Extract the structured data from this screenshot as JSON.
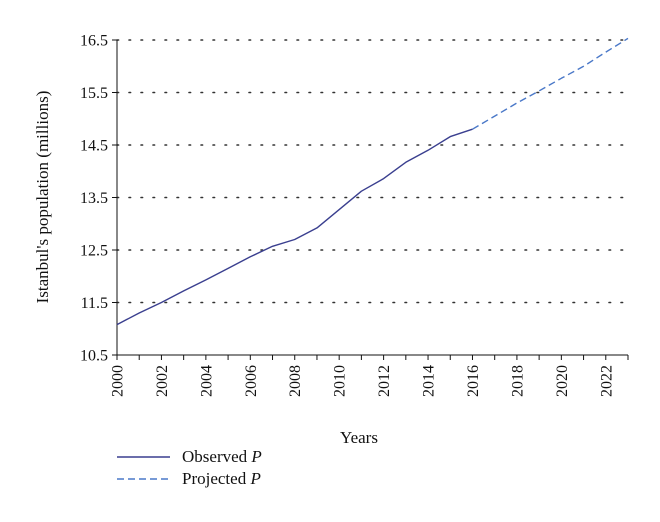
{
  "chart_data": {
    "type": "line",
    "xlabel": "Years",
    "ylabel": "Istanbul's population (millions)",
    "xlim": [
      2000,
      2023
    ],
    "ylim": [
      10.5,
      16.5
    ],
    "x_ticks": [
      "2000",
      "2002",
      "2004",
      "2006",
      "2008",
      "2010",
      "2012",
      "2014",
      "2016",
      "2018",
      "2020",
      "2022"
    ],
    "y_ticks": [
      "10.5",
      "11.5",
      "12.5",
      "13.5",
      "14.5",
      "15.5",
      "16.5"
    ],
    "grid": "horizontal dotted",
    "legend_position": "bottom-left",
    "series": [
      {
        "name": "Observed P",
        "legend_text": "Observed ",
        "legend_symbol": "P",
        "style": "solid",
        "color": "#3a3f8f",
        "x": [
          2000,
          2001,
          2002,
          2003,
          2004,
          2005,
          2006,
          2007,
          2008,
          2009,
          2010,
          2011,
          2012,
          2013,
          2014,
          2015,
          2016
        ],
        "y": [
          11.08,
          11.3,
          11.5,
          11.72,
          11.93,
          12.15,
          12.37,
          12.57,
          12.7,
          12.92,
          13.27,
          13.62,
          13.86,
          14.17,
          14.4,
          14.66,
          14.8
        ]
      },
      {
        "name": "Projected P",
        "legend_text": "Projected ",
        "legend_symbol": "P",
        "style": "dashed",
        "color": "#4a78c8",
        "x": [
          2016,
          2017,
          2018,
          2019,
          2020,
          2021,
          2022,
          2023
        ],
        "y": [
          14.8,
          15.05,
          15.3,
          15.53,
          15.77,
          16.0,
          16.27,
          16.53
        ]
      }
    ]
  }
}
